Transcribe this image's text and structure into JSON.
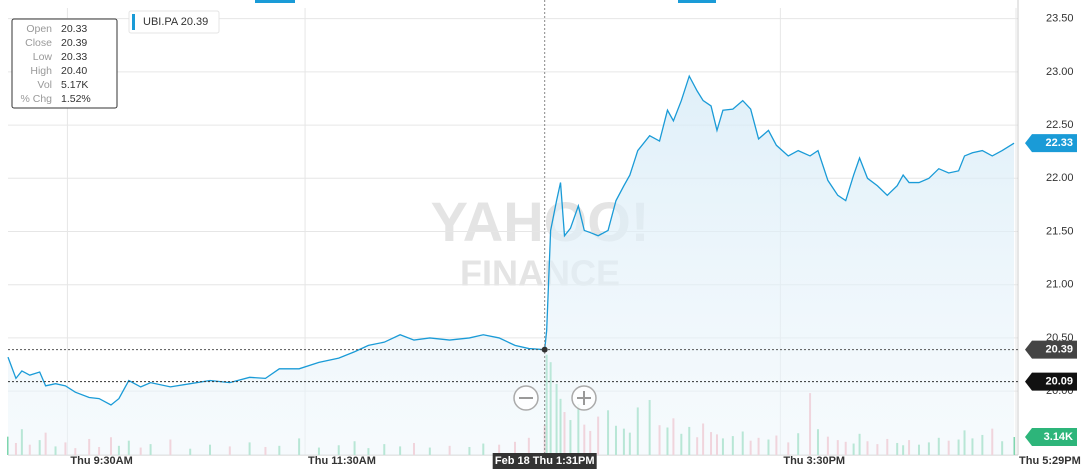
{
  "chart_data": {
    "type": "line",
    "x": [
      "09:00",
      "09:04",
      "09:07",
      "09:11",
      "09:16",
      "09:19",
      "09:24",
      "09:29",
      "09:34",
      "09:41",
      "09:46",
      "09:52",
      "09:56",
      "10:01",
      "10:07",
      "10:12",
      "10:22",
      "10:32",
      "10:42",
      "10:52",
      "11:02",
      "11:10",
      "11:17",
      "11:27",
      "11:37",
      "11:47",
      "11:55",
      "12:02",
      "12:10",
      "12:18",
      "12:25",
      "12:33",
      "12:43",
      "12:53",
      "13:00",
      "13:08",
      "13:16",
      "13:23",
      "13:31",
      "13:32",
      "13:34",
      "13:37",
      "13:39",
      "13:41",
      "13:44",
      "13:48",
      "13:51",
      "13:54",
      "13:58",
      "14:03",
      "14:07",
      "14:11",
      "14:14",
      "14:18",
      "14:24",
      "14:29",
      "14:33",
      "14:36",
      "14:40",
      "14:44",
      "14:48",
      "14:51",
      "14:55",
      "14:58",
      "15:01",
      "15:06",
      "15:11",
      "15:15",
      "15:19",
      "15:24",
      "15:28",
      "15:34",
      "15:39",
      "15:45",
      "15:49",
      "15:54",
      "15:59",
      "16:03",
      "16:07",
      "16:10",
      "16:14",
      "16:19",
      "16:24",
      "16:29",
      "16:32",
      "16:35",
      "16:40",
      "16:45",
      "16:50",
      "16:55",
      "17:00",
      "17:03",
      "17:07",
      "17:12",
      "17:17",
      "17:22",
      "17:28"
    ],
    "series": [
      {
        "name": "UBI.PA",
        "color": "#1a9bd7",
        "values": [
          20.32,
          20.12,
          20.19,
          20.15,
          20.18,
          20.05,
          20.07,
          20.05,
          19.99,
          19.94,
          19.93,
          19.87,
          19.93,
          20.1,
          20.04,
          20.08,
          20.04,
          20.07,
          20.1,
          20.08,
          20.13,
          20.12,
          20.21,
          20.21,
          20.27,
          20.31,
          20.37,
          20.43,
          20.46,
          20.53,
          20.48,
          20.5,
          20.48,
          20.5,
          20.53,
          20.5,
          20.43,
          20.4,
          20.39,
          20.57,
          21.51,
          21.79,
          21.96,
          21.46,
          21.53,
          21.74,
          21.51,
          21.49,
          21.46,
          21.51,
          21.79,
          21.93,
          22.03,
          22.26,
          22.4,
          22.35,
          22.64,
          22.54,
          22.73,
          22.96,
          22.82,
          22.73,
          22.68,
          22.45,
          22.64,
          22.65,
          22.73,
          22.65,
          22.37,
          22.45,
          22.31,
          22.21,
          22.26,
          22.21,
          22.26,
          21.98,
          21.84,
          21.79,
          22.03,
          22.19,
          22.0,
          21.93,
          21.84,
          21.93,
          22.03,
          21.96,
          21.96,
          22.0,
          22.09,
          22.05,
          22.07,
          22.21,
          22.24,
          22.26,
          22.21,
          22.26,
          22.33
        ]
      }
    ],
    "volume": {
      "up_color": "#7ed6ad",
      "down_color": "#f4b0bb",
      "lim": [
        0,
        78
      ],
      "last_label": "3.14K",
      "values": [
        3.2,
        2.1,
        4.5,
        1.8,
        2.6,
        3.9,
        1.5,
        2.2,
        1.2,
        2.8,
        1.4,
        3.1,
        1.6,
        2.5,
        1.3,
        1.9,
        2.7,
        1.1,
        1.8,
        1.5,
        2.2,
        1.4,
        1.6,
        2.9,
        1.3,
        1.7,
        2.4,
        1.2,
        1.9,
        1.5,
        2.1,
        1.3,
        1.6,
        1.4,
        2.0,
        1.8,
        2.3,
        3.0,
        5.17,
        17.5,
        16.2,
        12.4,
        9.8,
        7.5,
        6.1,
        8.9,
        5.3,
        4.2,
        6.7,
        7.8,
        5.1,
        4.6,
        3.9,
        8.3,
        9.6,
        5.2,
        4.8,
        6.4,
        3.7,
        4.9,
        3.1,
        5.5,
        4.0,
        3.6,
        2.9,
        3.3,
        4.1,
        2.5,
        3.0,
        2.7,
        3.4,
        2.2,
        3.8,
        10.8,
        4.5,
        3.2,
        2.6,
        2.3,
        2.0,
        3.7,
        2.4,
        1.9,
        2.8,
        2.1,
        1.7,
        2.6,
        1.8,
        2.2,
        3.0,
        2.5,
        2.7,
        4.3,
        2.9,
        3.5,
        4.6,
        2.4,
        3.14
      ]
    },
    "xlim": [
      "09:00",
      "17:30"
    ],
    "xticks": [
      {
        "value": "09:30",
        "label": "Thu 9:30AM"
      },
      {
        "value": "11:30",
        "label": "Thu 11:30AM"
      },
      {
        "value": "15:30",
        "label": "Thu 3:30PM"
      },
      {
        "value": "17:29",
        "label": "Thu 5:29PM"
      }
    ],
    "ylim": [
      19.4,
      23.6
    ],
    "yticks": [
      {
        "value": 20,
        "label": "20.00"
      },
      {
        "value": 20.5,
        "label": "20.50"
      },
      {
        "value": 21,
        "label": "21.00"
      },
      {
        "value": 21.5,
        "label": "21.50"
      },
      {
        "value": 22,
        "label": "22.00"
      },
      {
        "value": 22.5,
        "label": "22.50"
      },
      {
        "value": 23,
        "label": "23.00"
      },
      {
        "value": 23.5,
        "label": "23.50"
      }
    ],
    "grid": true,
    "prev_close": 20.09,
    "crosshair": {
      "x": "13:31",
      "value": 20.39,
      "label": "Feb 18 Thu 1:31PM"
    },
    "tooltip": [
      [
        "Open",
        "20.33"
      ],
      [
        "Close",
        "20.39"
      ],
      [
        "Low",
        "20.33"
      ],
      [
        "High",
        "20.40"
      ],
      [
        "Vol",
        "5.17K"
      ],
      [
        "% Chg",
        "1.52%"
      ]
    ],
    "watermark": [
      "YAHOO!",
      "FINANCE"
    ]
  }
}
